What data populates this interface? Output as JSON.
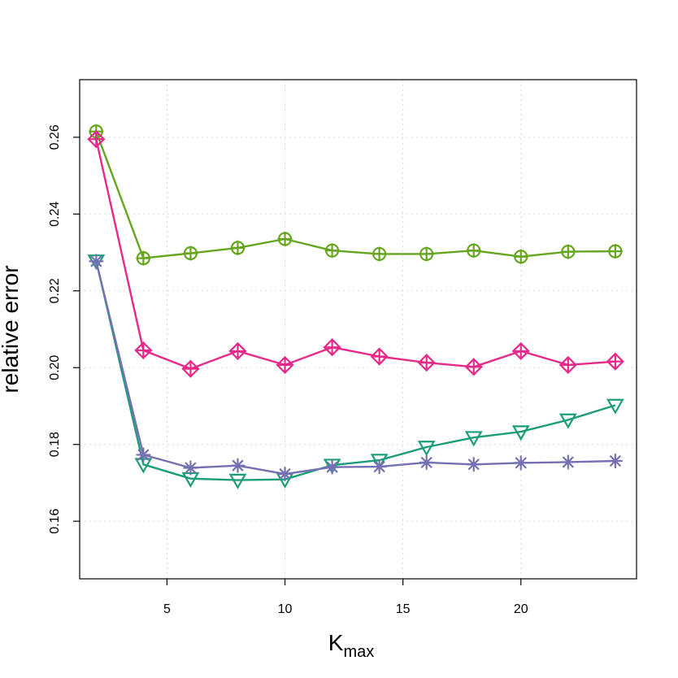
{
  "chart_data": {
    "type": "line",
    "xlabel": "K",
    "xlabel_subscript": "max",
    "ylabel": "relative error",
    "xlim": [
      1.3,
      24.9
    ],
    "ylim": [
      0.145,
      0.275
    ],
    "x_ticks": [
      5,
      10,
      15,
      20
    ],
    "x_tick_labels": [
      "5",
      "10",
      "15",
      "20"
    ],
    "y_ticks": [
      0.16,
      0.18,
      0.2,
      0.22,
      0.24,
      0.26
    ],
    "y_tick_labels": [
      "0.16",
      "0.18",
      "0.20",
      "0.22",
      "0.24",
      "0.26"
    ],
    "grid": true,
    "legend": "none",
    "x": [
      2,
      4,
      6,
      8,
      10,
      12,
      14,
      16,
      18,
      20,
      22,
      24
    ],
    "series": [
      {
        "marker": "circle-plus",
        "color": "#66a61e",
        "values": [
          0.2615,
          0.2285,
          0.2298,
          0.2312,
          0.2335,
          0.2305,
          0.2296,
          0.2296,
          0.2305,
          0.2289,
          0.2302,
          0.2303
        ]
      },
      {
        "marker": "diamond-plus",
        "color": "#e7298a",
        "values": [
          0.2595,
          0.2045,
          0.1997,
          0.2043,
          0.2007,
          0.2053,
          0.2029,
          0.2013,
          0.2002,
          0.2043,
          0.2007,
          0.2016
        ]
      },
      {
        "marker": "triangle-down",
        "color": "#1b9e77",
        "values": [
          0.2278,
          0.1748,
          0.1711,
          0.1707,
          0.1709,
          0.1746,
          0.1759,
          0.1793,
          0.1818,
          0.1833,
          0.1864,
          0.1902
        ]
      },
      {
        "marker": "asterisk",
        "color": "#7570b3",
        "values": [
          0.2277,
          0.1773,
          0.1739,
          0.1745,
          0.1723,
          0.1741,
          0.1742,
          0.1753,
          0.1748,
          0.1752,
          0.1754,
          0.1757
        ]
      }
    ]
  }
}
